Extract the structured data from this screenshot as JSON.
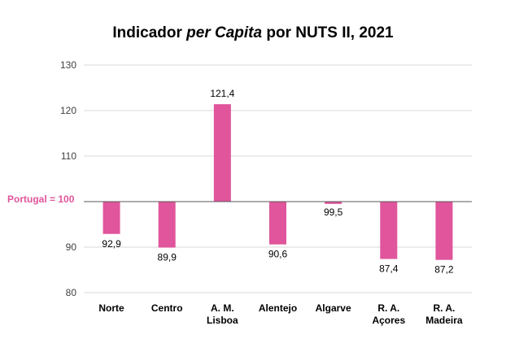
{
  "chart_data": {
    "type": "bar",
    "title_parts": [
      "Indicador ",
      "per Capita",
      " por NUTS II, 2021"
    ],
    "reference_label": "Portugal = 100",
    "reference_value": 100,
    "categories": [
      [
        "Norte"
      ],
      [
        "Centro"
      ],
      [
        "A. M.",
        "Lisboa"
      ],
      [
        "Alentejo"
      ],
      [
        "Algarve"
      ],
      [
        "R. A.",
        "Açores"
      ],
      [
        "R. A.",
        "Madeira"
      ]
    ],
    "values": [
      92.9,
      89.9,
      121.4,
      90.6,
      99.5,
      87.4,
      87.2
    ],
    "value_labels": [
      "92,9",
      "89,9",
      "121,4",
      "90,6",
      "99,5",
      "87,4",
      "87,2"
    ],
    "yticks": [
      80,
      90,
      110,
      120,
      130
    ],
    "ylim": [
      80,
      130
    ],
    "bar_color": "#e0559b",
    "grid": true
  }
}
